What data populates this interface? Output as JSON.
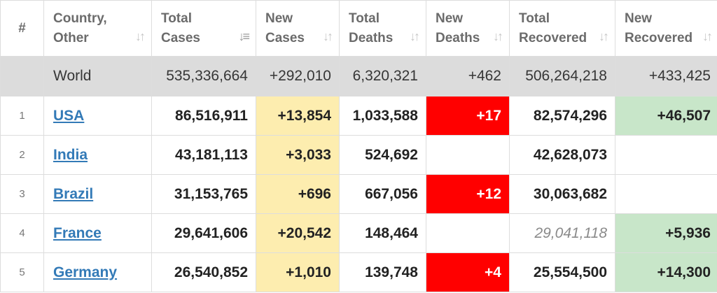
{
  "headers": [
    {
      "l1": "#",
      "l2": ""
    },
    {
      "l1": "Country,",
      "l2": "Other"
    },
    {
      "l1": "Total",
      "l2": "Cases"
    },
    {
      "l1": "New",
      "l2": "Cases"
    },
    {
      "l1": "Total",
      "l2": "Deaths"
    },
    {
      "l1": "New",
      "l2": "Deaths"
    },
    {
      "l1": "Total",
      "l2": "Recovered"
    },
    {
      "l1": "New",
      "l2": "Recovered"
    }
  ],
  "world": {
    "label": "World",
    "total_cases": "535,336,664",
    "new_cases": "+292,010",
    "total_deaths": "6,320,321",
    "new_deaths": "+462",
    "total_recovered": "506,264,218",
    "new_recovered": "+433,425"
  },
  "rows": [
    {
      "rank": "1",
      "country": "USA",
      "total_cases": "86,516,911",
      "new_cases": "+13,854",
      "total_deaths": "1,033,588",
      "new_deaths": "+17",
      "total_recovered": "82,574,296",
      "new_recovered": "+46,507"
    },
    {
      "rank": "2",
      "country": "India",
      "total_cases": "43,181,113",
      "new_cases": "+3,033",
      "total_deaths": "524,692",
      "new_deaths": "",
      "total_recovered": "42,628,073",
      "new_recovered": ""
    },
    {
      "rank": "3",
      "country": "Brazil",
      "total_cases": "31,153,765",
      "new_cases": "+696",
      "total_deaths": "667,056",
      "new_deaths": "+12",
      "total_recovered": "30,063,682",
      "new_recovered": ""
    },
    {
      "rank": "4",
      "country": "France",
      "total_cases": "29,641,606",
      "new_cases": "+20,542",
      "total_deaths": "148,464",
      "new_deaths": "",
      "total_recovered": "29,041,118",
      "new_recovered": "+5,936"
    },
    {
      "rank": "5",
      "country": "Germany",
      "total_cases": "26,540,852",
      "new_cases": "+1,010",
      "total_deaths": "139,748",
      "new_deaths": "+4",
      "total_recovered": "25,554,500",
      "new_recovered": "+14,300"
    }
  ],
  "icons": {
    "sort": "sort-arrows-icon",
    "sort_active": "sort-descending-icon"
  },
  "colors": {
    "new_cases_bg": "#fdedaf",
    "new_deaths_bg": "#ff0000",
    "new_recovered_bg": "#c8e6c9",
    "world_row_bg": "#dcdcdc",
    "link": "#337ab7"
  }
}
